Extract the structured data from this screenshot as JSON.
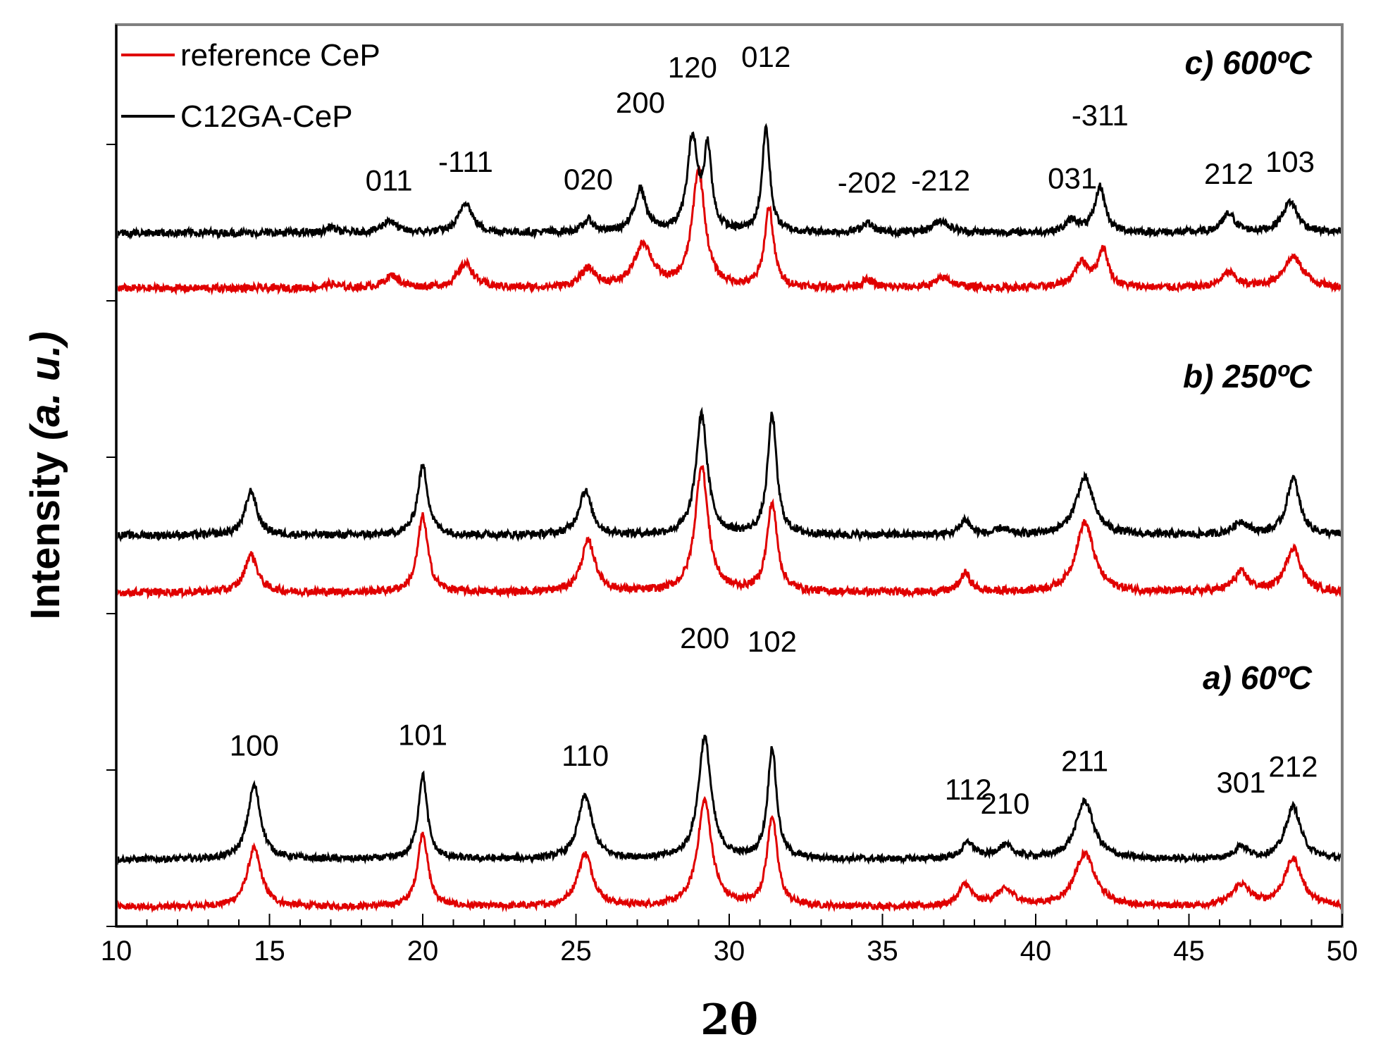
{
  "chart_data": {
    "type": "line",
    "title": "",
    "xlabel": "2θ",
    "ylabel_parts": [
      "Intensity ",
      "(a. u.)"
    ],
    "xlim": [
      10,
      50
    ],
    "xticks": [
      10,
      15,
      20,
      25,
      30,
      35,
      40,
      45,
      50
    ],
    "yticks_labeled": false,
    "legend": [
      {
        "name": "reference CeP",
        "color": "#e00000"
      },
      {
        "name": "C12GA-CeP",
        "color": "#000000"
      }
    ],
    "panels": [
      {
        "label": "a) 60ºC",
        "reference_CeP": {
          "baseline": 0.05,
          "peaks": [
            [
              14.5,
              0.55,
              0.55
            ],
            [
              20.0,
              0.7,
              0.4
            ],
            [
              25.3,
              0.5,
              0.6
            ],
            [
              29.2,
              1.0,
              0.55
            ],
            [
              31.4,
              0.85,
              0.4
            ],
            [
              37.7,
              0.2,
              0.5
            ],
            [
              39.0,
              0.15,
              0.8
            ],
            [
              41.6,
              0.5,
              0.8
            ],
            [
              46.7,
              0.2,
              0.7
            ],
            [
              48.4,
              0.45,
              0.7
            ]
          ]
        },
        "C12GA_CeP": {
          "baseline": 0.5,
          "peaks": [
            [
              14.5,
              0.7,
              0.5
            ],
            [
              20.0,
              0.8,
              0.35
            ],
            [
              25.3,
              0.6,
              0.55
            ],
            [
              29.2,
              1.15,
              0.5
            ],
            [
              31.4,
              1.05,
              0.35
            ],
            [
              37.8,
              0.15,
              0.5
            ],
            [
              39.0,
              0.12,
              0.7
            ],
            [
              41.6,
              0.55,
              0.7
            ],
            [
              46.7,
              0.12,
              0.5
            ],
            [
              48.4,
              0.5,
              0.6
            ]
          ],
          "peak_labels": [
            {
              "x": 14.5,
              "text": "100"
            },
            {
              "x": 20.0,
              "text": "101"
            },
            {
              "x": 25.3,
              "text": "110"
            },
            {
              "x": 29.2,
              "text": "200"
            },
            {
              "x": 31.4,
              "text": "102"
            },
            {
              "x": 37.8,
              "text": "112"
            },
            {
              "x": 39.0,
              "text": "210"
            },
            {
              "x": 41.6,
              "text": "211"
            },
            {
              "x": 46.7,
              "text": "301"
            },
            {
              "x": 48.4,
              "text": "212"
            }
          ]
        }
      },
      {
        "label": "b) 250ºC",
        "reference_CeP": {
          "baseline": 0.05,
          "peaks": [
            [
              14.4,
              0.3,
              0.5
            ],
            [
              20.0,
              0.6,
              0.4
            ],
            [
              25.4,
              0.4,
              0.55
            ],
            [
              29.1,
              1.0,
              0.5
            ],
            [
              31.4,
              0.7,
              0.4
            ],
            [
              37.7,
              0.15,
              0.4
            ],
            [
              41.6,
              0.55,
              0.7
            ],
            [
              46.7,
              0.15,
              0.6
            ],
            [
              48.4,
              0.35,
              0.6
            ]
          ]
        },
        "C12GA_CeP": {
          "baseline": 0.5,
          "peaks": [
            [
              14.4,
              0.35,
              0.45
            ],
            [
              20.0,
              0.55,
              0.4
            ],
            [
              25.3,
              0.35,
              0.5
            ],
            [
              29.1,
              0.95,
              0.45
            ],
            [
              31.4,
              0.95,
              0.35
            ],
            [
              37.7,
              0.12,
              0.4
            ],
            [
              38.9,
              0.05,
              0.4
            ],
            [
              41.6,
              0.45,
              0.7
            ],
            [
              46.7,
              0.1,
              0.6
            ],
            [
              48.4,
              0.45,
              0.5
            ]
          ]
        }
      },
      {
        "label": "c) 600ºC",
        "reference_CeP": {
          "baseline": 0.05,
          "peaks": [
            [
              17.0,
              0.03,
              0.5
            ],
            [
              19.0,
              0.1,
              0.6
            ],
            [
              21.4,
              0.2,
              0.6
            ],
            [
              25.4,
              0.15,
              0.6
            ],
            [
              27.2,
              0.35,
              0.7
            ],
            [
              29.0,
              0.95,
              0.5
            ],
            [
              31.3,
              0.65,
              0.35
            ],
            [
              34.5,
              0.06,
              0.5
            ],
            [
              37.0,
              0.08,
              0.7
            ],
            [
              41.5,
              0.2,
              0.6
            ],
            [
              42.2,
              0.3,
              0.4
            ],
            [
              46.3,
              0.12,
              0.6
            ],
            [
              48.4,
              0.25,
              0.8
            ]
          ]
        },
        "C12GA_CeP": {
          "baseline": 0.5,
          "peaks": [
            [
              17.0,
              0.05,
              0.3
            ],
            [
              18.9,
              0.1,
              0.5
            ],
            [
              21.4,
              0.25,
              0.5
            ],
            [
              25.4,
              0.1,
              0.4
            ],
            [
              27.1,
              0.35,
              0.45
            ],
            [
              28.8,
              0.75,
              0.4
            ],
            [
              29.3,
              0.65,
              0.3
            ],
            [
              31.2,
              0.85,
              0.3
            ],
            [
              34.5,
              0.08,
              0.4
            ],
            [
              36.9,
              0.1,
              0.6
            ],
            [
              41.2,
              0.1,
              0.5
            ],
            [
              42.1,
              0.37,
              0.4
            ],
            [
              46.3,
              0.15,
              0.5
            ],
            [
              48.3,
              0.25,
              0.6
            ]
          ],
          "peak_labels": [
            {
              "x": 18.9,
              "text": "011"
            },
            {
              "x": 21.4,
              "text": "-111"
            },
            {
              "x": 25.4,
              "text": "020"
            },
            {
              "x": 27.1,
              "text": "200"
            },
            {
              "x": 28.8,
              "text": "120"
            },
            {
              "x": 31.2,
              "text": "012"
            },
            {
              "x": 34.5,
              "text": "-202"
            },
            {
              "x": 36.9,
              "text": "-212"
            },
            {
              "x": 41.2,
              "text": "031"
            },
            {
              "x": 42.1,
              "text": "-311"
            },
            {
              "x": 46.3,
              "text": "212"
            },
            {
              "x": 48.3,
              "text": "103"
            }
          ]
        }
      }
    ]
  }
}
